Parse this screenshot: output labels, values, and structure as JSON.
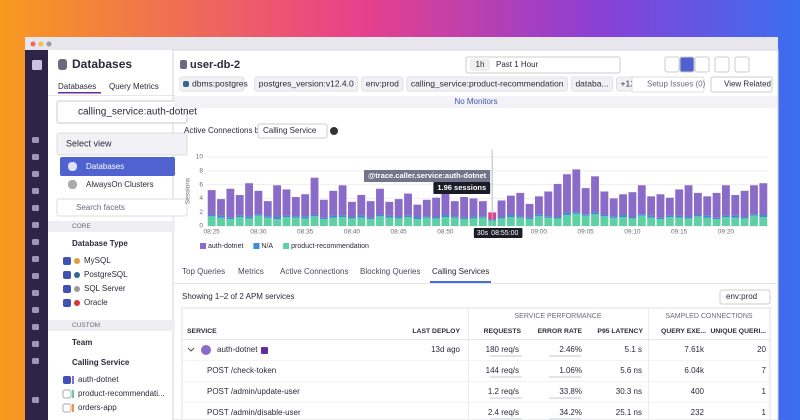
{
  "sidebar": {
    "title": "Databases",
    "tabs": [
      "Databases",
      "Query Metrics"
    ],
    "search": "calling_service:auth-dotnet",
    "select_view": "Select view",
    "views": [
      "Databases",
      "AlwaysOn Clusters"
    ],
    "facet_search": "Search facets",
    "core": "CORE",
    "database_type": "Database Type",
    "db_types": [
      "MySQL",
      "PostgreSQL",
      "SQL Server",
      "Oracle"
    ],
    "custom": "CUSTOM",
    "team": "Team",
    "calling_service": "Calling Service",
    "services": [
      "auth-dotnet",
      "product-recommendati...",
      "orders-app"
    ]
  },
  "panel": {
    "title": "user-db-2",
    "time_short": "1h",
    "time_range": "Past 1 Hour",
    "tags": [
      "dbms:postgres",
      "postgres_version:v12.4.0",
      "env:prod",
      "calling_service:product-recommendation",
      "databa...",
      "+12"
    ],
    "setup_issues": "Setup Issues (0)",
    "view_related": "View Related",
    "monitors": "No Monitors",
    "group_by_label": "Active Connections by",
    "group_by": "Calling Service",
    "tabs": [
      "Top Queries",
      "Metrics",
      "Active Connections",
      "Blocking Queries",
      "Calling Services"
    ],
    "showing": "Showing 1–2 of 2 APM services",
    "env_filter": "env:prod"
  },
  "chart_data": {
    "type": "bar",
    "stacked": true,
    "y_label": "Sessions",
    "ylim": [
      0,
      10
    ],
    "yticks": [
      0,
      2,
      4,
      6,
      8,
      10
    ],
    "categories": [
      "08:25",
      null,
      null,
      null,
      null,
      "08:30",
      null,
      null,
      null,
      null,
      "08:35",
      null,
      null,
      null,
      null,
      "08:40",
      null,
      null,
      null,
      null,
      "08:45",
      null,
      null,
      null,
      null,
      "08:50",
      null,
      null,
      null,
      null,
      null,
      null,
      null,
      null,
      null,
      "09:00",
      null,
      null,
      null,
      null,
      "09:05",
      null,
      null,
      null,
      null,
      "09:10",
      null,
      null,
      null,
      null,
      "09:15",
      null,
      null,
      null,
      null,
      "09:20",
      null,
      null,
      null,
      null
    ],
    "series": [
      {
        "name": "product-recommendation",
        "color": "#5fcfa4",
        "values": [
          1.4,
          1.2,
          1.0,
          1.3,
          1.1,
          1.5,
          1.2,
          1.0,
          1.3,
          1.2,
          1.1,
          1.4,
          1.0,
          1.2,
          1.3,
          1.1,
          1.2,
          1.0,
          1.4,
          1.2,
          1.1,
          1.3,
          1.0,
          1.2,
          1.1,
          1.3,
          1.2,
          1.0,
          1.1,
          1.2,
          0.8,
          1.1,
          1.3,
          1.2,
          1.0,
          1.4,
          1.2,
          1.1,
          1.6,
          1.8,
          1.5,
          1.7,
          1.4,
          1.2,
          1.3,
          1.1,
          1.5,
          1.2,
          1.0,
          1.3,
          1.2,
          1.1,
          1.4,
          1.2,
          1.0,
          1.3,
          1.2,
          1.1,
          1.5,
          1.3
        ]
      },
      {
        "name": "N/A",
        "color": "#3d8bd9",
        "values": [
          0.2,
          0.3,
          0.2,
          0.2,
          0.3,
          0.2,
          0.2,
          0.3,
          0.2,
          0.2,
          0.3,
          0.2,
          0.2,
          0.3,
          0.2,
          0.2,
          0.3,
          0.2,
          0.2,
          0.3,
          0.2,
          0.2,
          0.3,
          0.2,
          0.2,
          0.3,
          0.2,
          0.2,
          0.3,
          0.2,
          0.2,
          0.2,
          0.3,
          0.2,
          0.2,
          0.3,
          0.2,
          0.2,
          0.3,
          0.2,
          0.2,
          0.3,
          0.2,
          0.2,
          0.3,
          0.2,
          0.2,
          0.3,
          0.2,
          0.2,
          0.3,
          0.2,
          0.2,
          0.3,
          0.2,
          0.2,
          0.3,
          0.2,
          0.2,
          0.3
        ]
      },
      {
        "name": "auth-dotnet",
        "color": "#8a6cc8",
        "values": [
          3.6,
          2.4,
          4.2,
          3.0,
          4.8,
          3.4,
          2.2,
          4.6,
          3.8,
          2.8,
          3.2,
          5.4,
          2.6,
          3.6,
          4.4,
          2.2,
          3.0,
          2.4,
          3.8,
          2.0,
          2.6,
          3.2,
          1.8,
          2.4,
          2.8,
          3.4,
          2.2,
          3.0,
          2.6,
          2.2,
          0.96,
          2.4,
          2.8,
          3.4,
          2.0,
          2.6,
          3.6,
          4.8,
          5.6,
          6.2,
          3.8,
          5.2,
          3.4,
          2.6,
          3.0,
          3.6,
          4.2,
          2.8,
          3.4,
          2.6,
          3.8,
          4.6,
          3.2,
          2.8,
          3.6,
          4.4,
          3.0,
          3.8,
          4.2,
          4.6
        ]
      }
    ],
    "legend_order": [
      2,
      1,
      0
    ],
    "highlight_index": 30,
    "highlight_color": "#e0408f",
    "tooltip": {
      "title": "@trace.caller.service:auth-dotnet",
      "value": "1.96 sessions",
      "window": "30s",
      "time": "08:55:00"
    }
  },
  "table": {
    "groups": [
      "SERVICE PERFORMANCE",
      "SAMPLED CONNECTIONS"
    ],
    "columns": [
      "SERVICE",
      "LAST DEPLOY",
      "REQUESTS",
      "ERROR RATE",
      "P95 LATENCY",
      "QUERY EXE...",
      "UNIQUE QUERI..."
    ],
    "rows": [
      [
        "auth-dotnet",
        "13d ago",
        "180 req/s",
        "2.46%",
        "5.1 s",
        "7.61k",
        "20"
      ],
      [
        "POST /check-token",
        "",
        "144 req/s",
        "1.06%",
        "5.6 ns",
        "6.04k",
        "7"
      ],
      [
        "POST /admin/update-user",
        "",
        "1.2 req/s",
        "33.8%",
        "30.3 ns",
        "400",
        "1"
      ],
      [
        "POST /admin/disable-user",
        "",
        "2.4 req/s",
        "34.2%",
        "25.1 ns",
        "232",
        "1"
      ]
    ]
  }
}
